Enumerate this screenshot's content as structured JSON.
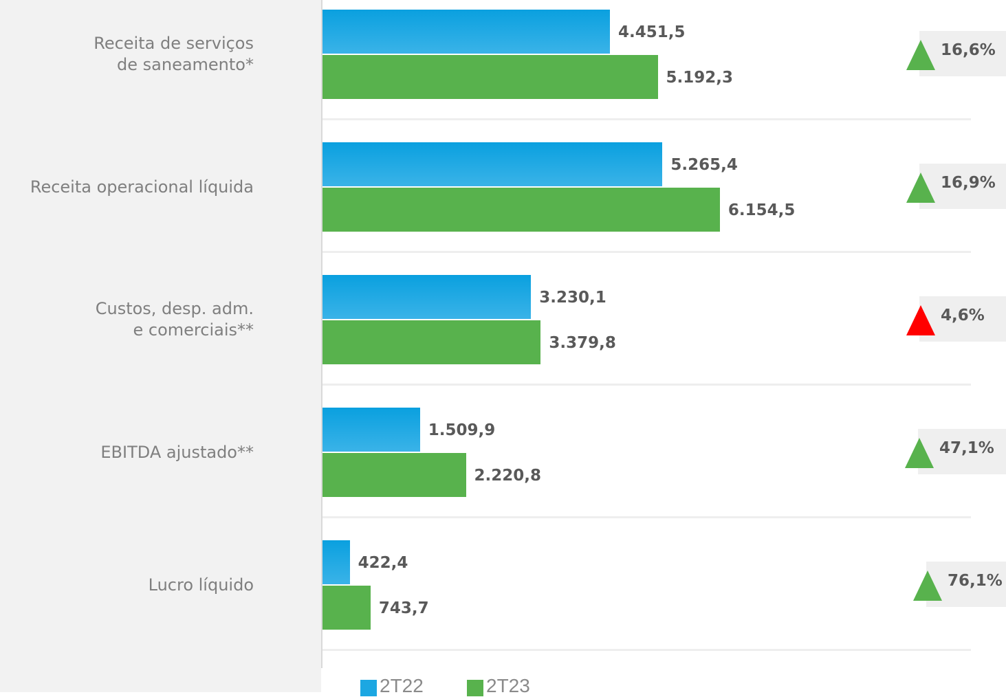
{
  "chart_data": {
    "type": "bar",
    "orientation": "horizontal",
    "categories": [
      "Receita de serviços\nde saneamento*",
      "Receita operacional líquida",
      "Custos, desp. adm.\ne comerciais**",
      "EBITDA ajustado**",
      "Lucro líquido"
    ],
    "series": [
      {
        "name": "2T22",
        "color": "#1ca7e2",
        "values": [
          4451.5,
          5265.4,
          3230.1,
          1509.9,
          422.4
        ],
        "labels": [
          "4.451,5",
          "5.265,4",
          "3.230,1",
          "1.509,9",
          "422,4"
        ]
      },
      {
        "name": "2T23",
        "color": "#58b24d",
        "values": [
          5192.3,
          6154.5,
          3379.8,
          2220.8,
          743.7
        ],
        "labels": [
          "5.192,3",
          "6.154,5",
          "3.379,8",
          "2.220,8",
          "743,7"
        ]
      }
    ],
    "changes": [
      {
        "label": "16,6%",
        "direction": "up",
        "color": "#58b24d"
      },
      {
        "label": "16,9%",
        "direction": "up",
        "color": "#58b24d"
      },
      {
        "label": "4,6%",
        "direction": "up",
        "color": "#ff0000"
      },
      {
        "label": "47,1%",
        "direction": "up",
        "color": "#58b24d"
      },
      {
        "label": "76,1%",
        "direction": "up",
        "color": "#58b24d"
      }
    ],
    "legend_position": "bottom",
    "grid": false
  }
}
